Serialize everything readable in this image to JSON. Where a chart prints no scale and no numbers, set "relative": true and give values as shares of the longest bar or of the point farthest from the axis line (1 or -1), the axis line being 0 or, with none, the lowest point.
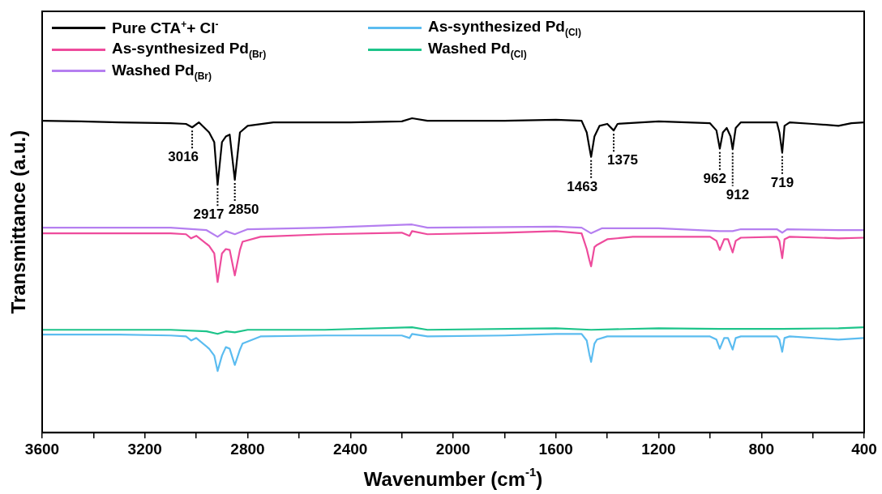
{
  "chart_data": {
    "type": "line",
    "relative": true,
    "xlabel": "Wavenumber (cm$^{-1}$)",
    "ylabel": "Transmittance (a.u.)",
    "xlim": [
      3600,
      400
    ],
    "xticks": [
      3600,
      {
        "value": 3400,
        "label": null
      },
      3200,
      {
        "value": 3000,
        "label": null
      },
      2800,
      {
        "value": 2600,
        "label": null
      },
      2400,
      {
        "value": 2200,
        "label": null
      },
      2000,
      {
        "value": 1800,
        "label": null
      },
      1600,
      {
        "value": 1400,
        "label": null
      },
      1200,
      {
        "value": 1000,
        "label": null
      },
      800,
      {
        "value": 600,
        "label": null
      },
      400
    ],
    "legend": "top left",
    "grid": false,
    "marker": "none",
    "line_style": "solid",
    "series": [
      {
        "name": "Pure CTA$^{+}$+ Cl$^{-}$",
        "color": "#000000",
        "x": [
          3600,
          3450,
          3300,
          3100,
          3040,
          3016,
          2990,
          2950,
          2930,
          2917,
          2900,
          2885,
          2870,
          2850,
          2830,
          2800,
          2700,
          2400,
          2200,
          2160,
          2100,
          1800,
          1600,
          1500,
          1480,
          1470,
          1463,
          1450,
          1430,
          1400,
          1375,
          1360,
          1200,
          1000,
          975,
          962,
          950,
          935,
          920,
          912,
          900,
          880,
          740,
          730,
          719,
          710,
          690,
          600,
          500,
          450,
          400
        ],
        "values": [
          0.992,
          0.99,
          0.987,
          0.984,
          0.982,
          0.971,
          0.987,
          0.955,
          0.924,
          0.788,
          0.924,
          0.942,
          0.948,
          0.804,
          0.955,
          0.976,
          0.987,
          0.987,
          0.99,
          1.0,
          0.992,
          0.992,
          0.995,
          0.992,
          0.955,
          0.908,
          0.877,
          0.942,
          0.976,
          0.982,
          0.961,
          0.982,
          0.99,
          0.984,
          0.961,
          0.903,
          0.955,
          0.969,
          0.942,
          0.901,
          0.969,
          0.987,
          0.987,
          0.955,
          0.89,
          0.976,
          0.987,
          0.982,
          0.976,
          0.984,
          0.987
        ]
      },
      {
        "name": "As-synthesized Pd$_{(Cl)}$",
        "color": "#5bbcf0",
        "x": [
          3600,
          3300,
          3100,
          3040,
          3020,
          3000,
          2950,
          2930,
          2917,
          2900,
          2885,
          2870,
          2850,
          2830,
          2820,
          2750,
          2500,
          2200,
          2170,
          2160,
          2100,
          1800,
          1600,
          1500,
          1480,
          1470,
          1463,
          1450,
          1440,
          1400,
          1200,
          1000,
          975,
          962,
          945,
          930,
          912,
          900,
          880,
          740,
          730,
          719,
          710,
          690,
          500,
          400
        ],
        "values": [
          0.312,
          0.312,
          0.309,
          0.306,
          0.293,
          0.301,
          0.267,
          0.245,
          0.196,
          0.245,
          0.272,
          0.267,
          0.215,
          0.264,
          0.283,
          0.306,
          0.309,
          0.309,
          0.301,
          0.314,
          0.306,
          0.309,
          0.314,
          0.314,
          0.293,
          0.25,
          0.225,
          0.283,
          0.296,
          0.306,
          0.306,
          0.306,
          0.296,
          0.267,
          0.301,
          0.301,
          0.264,
          0.301,
          0.306,
          0.306,
          0.296,
          0.257,
          0.301,
          0.306,
          0.296,
          0.301
        ]
      },
      {
        "name": "As-synthesized Pd$_{(Br)}$",
        "color": "#ee4b9c",
        "x": [
          3600,
          3300,
          3100,
          3040,
          3020,
          3000,
          2950,
          2930,
          2917,
          2900,
          2885,
          2870,
          2850,
          2830,
          2820,
          2750,
          2500,
          2200,
          2170,
          2160,
          2100,
          1800,
          1600,
          1500,
          1480,
          1470,
          1463,
          1450,
          1440,
          1400,
          1300,
          1000,
          975,
          962,
          945,
          930,
          912,
          900,
          880,
          740,
          730,
          719,
          710,
          690,
          500,
          400
        ],
        "values": [
          0.634,
          0.634,
          0.634,
          0.631,
          0.618,
          0.626,
          0.594,
          0.57,
          0.479,
          0.57,
          0.584,
          0.581,
          0.5,
          0.581,
          0.607,
          0.623,
          0.631,
          0.636,
          0.626,
          0.641,
          0.631,
          0.636,
          0.641,
          0.634,
          0.584,
          0.55,
          0.529,
          0.59,
          0.597,
          0.615,
          0.623,
          0.623,
          0.61,
          0.581,
          0.615,
          0.615,
          0.573,
          0.61,
          0.62,
          0.623,
          0.61,
          0.555,
          0.615,
          0.623,
          0.618,
          0.62
        ]
      },
      {
        "name": "Washed Pd$_{(Cl)}$",
        "color": "#1dc48a",
        "x": [
          3600,
          3100,
          2960,
          2917,
          2885,
          2850,
          2800,
          2500,
          2160,
          2100,
          1600,
          1463,
          1200,
          962,
          912,
          719,
          500,
          400
        ],
        "values": [
          0.327,
          0.327,
          0.322,
          0.314,
          0.322,
          0.319,
          0.327,
          0.327,
          0.335,
          0.327,
          0.332,
          0.327,
          0.332,
          0.33,
          0.33,
          0.33,
          0.332,
          0.335
        ]
      },
      {
        "name": "Washed Pd$_{(Br)}$",
        "color": "#b57ff0",
        "x": [
          3600,
          3100,
          2960,
          2917,
          2885,
          2850,
          2800,
          2500,
          2160,
          2100,
          1600,
          1500,
          1463,
          1420,
          1200,
          962,
          912,
          880,
          740,
          719,
          700,
          500,
          400
        ],
        "values": [
          0.652,
          0.652,
          0.644,
          0.623,
          0.641,
          0.631,
          0.647,
          0.652,
          0.662,
          0.652,
          0.655,
          0.652,
          0.634,
          0.65,
          0.65,
          0.641,
          0.641,
          0.647,
          0.647,
          0.636,
          0.647,
          0.644,
          0.644
        ]
      }
    ],
    "annotations": [
      {
        "text": "3016",
        "x": 3016,
        "y": 0.971
      },
      {
        "text": "2917",
        "x": 2917,
        "y": 0.788
      },
      {
        "text": "2850",
        "x": 2850,
        "y": 0.804
      },
      {
        "text": "1463",
        "x": 1463,
        "y": 0.877
      },
      {
        "text": "1375",
        "x": 1375,
        "y": 0.961
      },
      {
        "text": "962",
        "x": 962,
        "y": 0.903
      },
      {
        "text": "912",
        "x": 912,
        "y": 0.901
      },
      {
        "text": "719",
        "x": 719,
        "y": 0.89
      }
    ]
  }
}
